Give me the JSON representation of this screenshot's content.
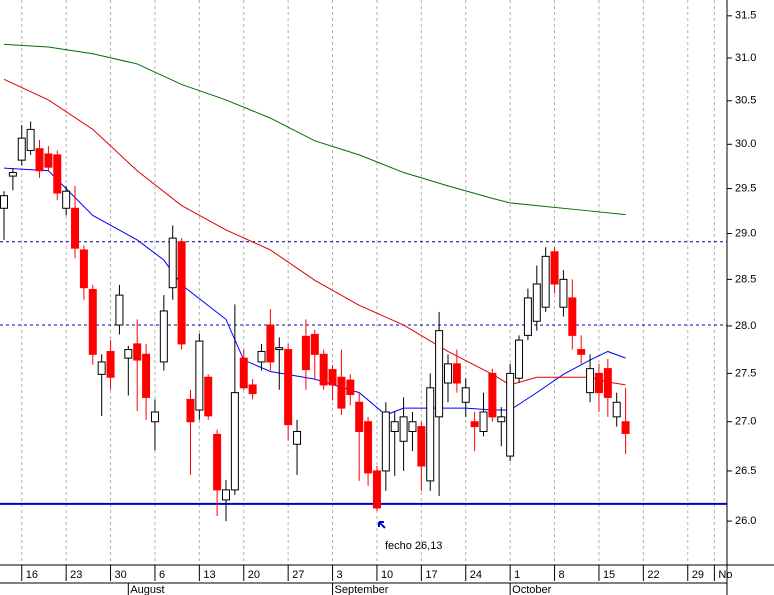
{
  "chart_data": {
    "type": "candlestick",
    "log_scale": true,
    "up_color": "#ffffff",
    "down_color": "#ff0000",
    "x": [
      0,
      1,
      2,
      3,
      4,
      5,
      6,
      7,
      8,
      9,
      10,
      11,
      12,
      13,
      14,
      15,
      16,
      17,
      18,
      19,
      20,
      21,
      22,
      23,
      24,
      25,
      26,
      27,
      28,
      29,
      30,
      31,
      32,
      33,
      34,
      35,
      36,
      37,
      38,
      39,
      40,
      41,
      42,
      43,
      44,
      45,
      46,
      47,
      48,
      49,
      50,
      51,
      52,
      53,
      54,
      55,
      56,
      57,
      58,
      59,
      60,
      61,
      62,
      63,
      64,
      65,
      66,
      67,
      68,
      69,
      70
    ],
    "open": [
      29.28,
      29.64,
      29.82,
      29.93,
      29.95,
      29.89,
      29.88,
      29.28,
      29.28,
      28.82,
      28.39,
      27.49,
      27.73,
      28.01,
      27.66,
      27.81,
      27.7,
      27.0,
      27.62,
      28.41,
      28.91,
      27.23,
      27.12,
      27.46,
      26.87,
      26.21,
      26.31,
      27.66,
      27.38,
      27.62,
      28.01,
      27.75,
      27.75,
      26.77,
      27.89,
      27.91,
      27.7,
      27.54,
      27.46,
      27.43,
      27.2,
      27.0,
      26.5,
      26.5,
      26.9,
      26.8,
      26.9,
      26.95,
      26.4,
      27.05,
      27.4,
      27.6,
      27.2,
      27.0,
      26.9,
      27.5,
      27.0,
      26.65,
      27.45,
      27.9,
      28.05,
      28.2,
      28.8,
      28.2,
      28.3,
      27.75,
      27.3,
      27.5,
      27.55,
      27.05,
      27.0
    ],
    "high": [
      29.47,
      29.73,
      30.22,
      30.26,
      30.05,
      29.98,
      29.93,
      29.53,
      29.53,
      28.87,
      28.44,
      27.7,
      27.85,
      28.44,
      27.79,
      28.07,
      27.81,
      27.23,
      28.33,
      29.09,
      28.95,
      27.33,
      27.92,
      27.49,
      26.92,
      26.41,
      28.23,
      27.75,
      27.44,
      27.81,
      28.18,
      27.88,
      27.81,
      27.02,
      28.07,
      27.96,
      27.75,
      27.59,
      27.75,
      27.49,
      27.3,
      27.05,
      26.55,
      27.2,
      27.1,
      27.25,
      27.1,
      27.0,
      27.5,
      28.15,
      27.7,
      27.75,
      27.45,
      27.1,
      27.3,
      27.55,
      27.15,
      27.6,
      27.9,
      28.4,
      28.65,
      28.85,
      28.85,
      28.6,
      28.5,
      27.9,
      27.7,
      27.6,
      27.65,
      27.3,
      27.35
    ],
    "low": [
      28.93,
      29.48,
      29.76,
      29.88,
      29.62,
      29.7,
      29.37,
      29.2,
      28.73,
      28.28,
      27.59,
      27.06,
      27.33,
      27.91,
      27.27,
      27.11,
      27.02,
      26.71,
      27.53,
      28.28,
      27.75,
      26.46,
      27.02,
      27.02,
      26.05,
      26.0,
      26.26,
      27.33,
      27.23,
      27.53,
      27.53,
      27.33,
      26.81,
      26.46,
      27.33,
      27.44,
      27.33,
      27.22,
      27.07,
      27.17,
      26.4,
      26.35,
      26.1,
      26.3,
      26.45,
      26.5,
      26.7,
      26.3,
      26.3,
      26.25,
      27.2,
      27.3,
      27.05,
      26.7,
      26.85,
      27.0,
      26.75,
      26.6,
      27.4,
      27.85,
      27.95,
      28.15,
      28.35,
      28.1,
      27.75,
      27.6,
      27.2,
      27.1,
      27.05,
      26.95,
      26.67
    ],
    "close": [
      29.42,
      29.68,
      30.07,
      30.17,
      29.7,
      29.74,
      29.45,
      29.47,
      28.84,
      28.41,
      27.7,
      27.62,
      27.46,
      28.33,
      27.75,
      27.64,
      27.25,
      27.1,
      28.16,
      28.95,
      27.81,
      27.0,
      27.84,
      27.06,
      26.31,
      26.31,
      27.3,
      27.35,
      27.29,
      27.73,
      27.62,
      27.77,
      26.97,
      26.9,
      27.54,
      27.7,
      27.38,
      27.38,
      27.14,
      27.28,
      26.9,
      26.48,
      26.13,
      27.1,
      27.0,
      27.05,
      27.0,
      26.55,
      27.35,
      27.95,
      27.6,
      27.4,
      27.35,
      26.95,
      27.1,
      27.05,
      27.05,
      27.5,
      27.85,
      28.3,
      28.45,
      28.75,
      28.45,
      28.5,
      27.9,
      27.7,
      27.55,
      27.3,
      27.25,
      27.2,
      26.88
    ],
    "series": [
      {
        "color": "#0000ff",
        "x": [
          0,
          5,
          10,
          15,
          18,
          20,
          25,
          27,
          30,
          35,
          40,
          43,
          45,
          48,
          52,
          55,
          57,
          60,
          63,
          66,
          68,
          70
        ],
        "values": [
          29.73,
          29.7,
          29.2,
          28.93,
          28.71,
          28.44,
          28.07,
          27.64,
          27.52,
          27.44,
          27.3,
          27.07,
          27.14,
          27.14,
          27.14,
          27.12,
          27.12,
          27.3,
          27.49,
          27.64,
          27.73,
          27.66
        ]
      },
      {
        "color": "#e00000",
        "x": [
          0,
          5,
          10,
          15,
          20,
          25,
          30,
          35,
          40,
          45,
          50,
          55,
          57,
          60,
          63,
          66,
          68,
          70
        ],
        "values": [
          30.75,
          30.51,
          30.17,
          29.7,
          29.31,
          29.04,
          28.82,
          28.49,
          28.22,
          28.01,
          27.73,
          27.49,
          27.38,
          27.46,
          27.46,
          27.46,
          27.41,
          27.38
        ]
      },
      {
        "color": "#007000",
        "x": [
          0,
          5,
          10,
          15,
          20,
          25,
          30,
          35,
          40,
          45,
          50,
          55,
          57,
          60,
          65,
          70
        ],
        "values": [
          31.16,
          31.13,
          31.05,
          30.93,
          30.69,
          30.51,
          30.3,
          30.04,
          29.88,
          29.68,
          29.53,
          29.39,
          29.34,
          29.31,
          29.26,
          29.21
        ]
      }
    ],
    "reference_lines": [
      {
        "value": 28.91,
        "color": "#0000aa",
        "dashed": true
      },
      {
        "value": 28.01,
        "color": "#0000aa",
        "dashed": true
      },
      {
        "value": 26.17,
        "color": "#0000cc",
        "dashed": false
      }
    ],
    "annotation": {
      "text": "fecho 26,13",
      "x": 42,
      "value": 26.13,
      "color": "#0000cc"
    },
    "xlim": [
      -0.45,
      81.42
    ],
    "ylim": [
      25.57,
      31.69
    ],
    "yticks": [
      31.5,
      {
        "value": 31,
        "label": "31.0"
      },
      30.5,
      {
        "value": 30,
        "label": "30.0"
      },
      29.5,
      {
        "value": 29,
        "label": "29.0"
      },
      28.5,
      {
        "value": 28,
        "label": "28.0"
      },
      27.5,
      {
        "value": 27,
        "label": "27.0"
      },
      26.5,
      {
        "value": 26,
        "label": "26.0"
      }
    ],
    "xticks": [
      {
        "value": 2,
        "label": "16"
      },
      {
        "value": 7,
        "label": "23"
      },
      {
        "value": 12,
        "label": "30"
      },
      {
        "value": 17,
        "label": "6"
      },
      {
        "value": 22,
        "label": "13"
      },
      {
        "value": 27,
        "label": "20"
      },
      {
        "value": 32,
        "label": "27"
      },
      {
        "value": 37,
        "label": "3"
      },
      {
        "value": 42,
        "label": "10"
      },
      {
        "value": 47,
        "label": "17"
      },
      {
        "value": 52,
        "label": "24"
      },
      {
        "value": 57,
        "label": "1"
      },
      {
        "value": 62,
        "label": "8"
      },
      {
        "value": 67,
        "label": "15"
      },
      {
        "value": 72,
        "label": "22"
      },
      {
        "value": 77,
        "label": "29"
      },
      {
        "value": 80,
        "label": "No"
      }
    ],
    "month_ticks": [
      {
        "value": 14,
        "label": "August"
      },
      {
        "value": 37,
        "label": "September"
      },
      {
        "value": 57,
        "label": "October"
      }
    ],
    "grid": true
  }
}
